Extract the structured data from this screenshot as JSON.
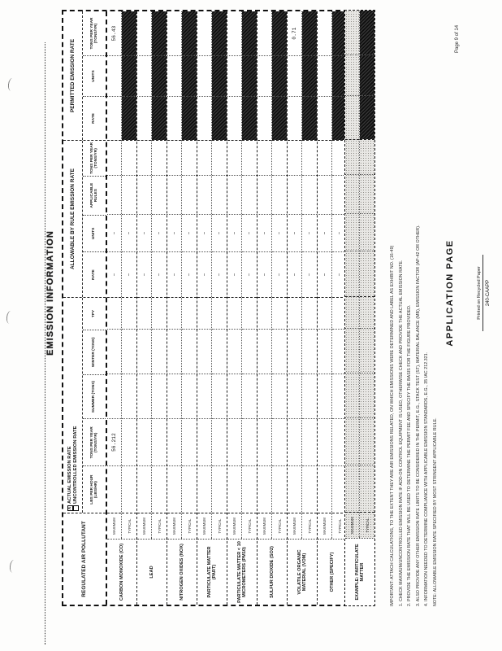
{
  "page": {
    "title": "EMISSION INFORMATION",
    "page_number": "Page 9 of 14",
    "footer": {
      "title": "APPLICATION PAGE",
      "recycled_note": "Printed on Recycled Paper",
      "form_number": "240-CAAPP"
    }
  },
  "table": {
    "pollutant_header": "REGULATED AIR POLLUTANT",
    "subrow_labels": [
      "MAXIMUM",
      "TYPICAL"
    ],
    "sections": {
      "actual": {
        "checkbox_checked_label": "ACTUAL EMISSION RATE",
        "checkbox_unchecked_label": "UNCONTROLLED EMISSION RATE",
        "check_glyph": "X",
        "columns": [
          "LBS PER HOUR (LBS/HR)",
          "TONS PER YEAR (TONS/YR)",
          "SUMMER (TONS)",
          "WINTER (TONS)",
          "TPY"
        ]
      },
      "allowable": {
        "title": "ALLOWABLE BY RULE EMISSION RATE",
        "columns": [
          "RATE",
          "UNITS",
          "APPLICABLE RULES",
          "TONS PER YEAR (TONS/YR)"
        ]
      },
      "permitted": {
        "title": "PERMITTED EMISSION RATE",
        "columns": [
          "RATE",
          "UNITS",
          "TONS PER YEAR (TONS/YR)"
        ]
      }
    },
    "rows": [
      {
        "name": "CARBON MONOXIDE (CO)",
        "sub": [
          {
            "label": "MAXIMUM",
            "actual": [
              "",
              "56.212",
              "",
              "",
              ""
            ],
            "allowable": [
              "-",
              "-",
              "",
              ""
            ],
            "permitted": [
              "",
              "",
              "56.43"
            ],
            "permitted_black": false
          },
          {
            "label": "TYPICAL",
            "actual": [
              "",
              "",
              "",
              "",
              ""
            ],
            "allowable": [
              "-",
              "-",
              "",
              ""
            ],
            "permitted": [
              "",
              "",
              ""
            ],
            "permitted_black": true
          }
        ]
      },
      {
        "name": "LEAD",
        "sub": [
          {
            "label": "MAXIMUM",
            "actual": [
              "",
              "",
              "",
              "",
              ""
            ],
            "allowable": [
              "-",
              "-",
              "",
              ""
            ],
            "permitted": [
              "",
              "",
              ""
            ],
            "permitted_black": false
          },
          {
            "label": "TYPICAL",
            "actual": [
              "",
              "",
              "",
              "",
              ""
            ],
            "allowable": [
              "-",
              "-",
              "",
              ""
            ],
            "permitted": [
              "",
              "",
              ""
            ],
            "permitted_black": true
          }
        ]
      },
      {
        "name": "NITROGEN OXIDES (NOX)",
        "sub": [
          {
            "label": "MAXIMUM",
            "actual": [
              "",
              "",
              "",
              "",
              ""
            ],
            "allowable": [
              "-",
              "-",
              "",
              ""
            ],
            "permitted": [
              "",
              "",
              ""
            ],
            "permitted_black": false
          },
          {
            "label": "TYPICAL",
            "actual": [
              "",
              "",
              "",
              "",
              ""
            ],
            "allowable": [
              "-",
              "-",
              "",
              ""
            ],
            "permitted": [
              "",
              "",
              ""
            ],
            "permitted_black": true
          }
        ]
      },
      {
        "name": "PARTICULATE MATTER (PART)",
        "sub": [
          {
            "label": "MAXIMUM",
            "actual": [
              "",
              "",
              "",
              "",
              ""
            ],
            "allowable": [
              "-",
              "-",
              "",
              ""
            ],
            "permitted": [
              "",
              "",
              ""
            ],
            "permitted_black": false
          },
          {
            "label": "TYPICAL",
            "actual": [
              "",
              "",
              "",
              "",
              ""
            ],
            "allowable": [
              "-",
              "-",
              "",
              ""
            ],
            "permitted": [
              "",
              "",
              ""
            ],
            "permitted_black": true
          }
        ]
      },
      {
        "name": "PARTICULATE MATTER < 10 MICROMETERS (PM10)",
        "sub": [
          {
            "label": "MAXIMUM",
            "actual": [
              "",
              "",
              "",
              "",
              ""
            ],
            "allowable": [
              "-",
              "-",
              "",
              ""
            ],
            "permitted": [
              "",
              "",
              ""
            ],
            "permitted_black": false
          },
          {
            "label": "TYPICAL",
            "actual": [
              "",
              "",
              "",
              "",
              ""
            ],
            "allowable": [
              "-",
              "-",
              "",
              ""
            ],
            "permitted": [
              "",
              "",
              ""
            ],
            "permitted_black": true
          }
        ]
      },
      {
        "name": "SULFUR DIOXIDE (SO2)",
        "sub": [
          {
            "label": "MAXIMUM",
            "actual": [
              "",
              "",
              "",
              "",
              ""
            ],
            "allowable": [
              "-",
              "-",
              "",
              ""
            ],
            "permitted": [
              "",
              "",
              ""
            ],
            "permitted_black": false
          },
          {
            "label": "TYPICAL",
            "actual": [
              "",
              "",
              "",
              "",
              ""
            ],
            "allowable": [
              "-",
              "-",
              "",
              ""
            ],
            "permitted": [
              "",
              "",
              ""
            ],
            "permitted_black": true
          }
        ]
      },
      {
        "name": "VOLATILE ORGANIC MATERIAL (VOM)",
        "sub": [
          {
            "label": "MAXIMUM",
            "actual": [
              "",
              "",
              "",
              "",
              ""
            ],
            "allowable": [
              "-",
              "-",
              "",
              ""
            ],
            "permitted": [
              "",
              "",
              "0.71"
            ],
            "permitted_black": false
          },
          {
            "label": "TYPICAL",
            "actual": [
              "",
              "",
              "",
              "",
              ""
            ],
            "allowable": [
              "-",
              "-",
              "",
              ""
            ],
            "permitted": [
              "",
              "",
              ""
            ],
            "permitted_black": true
          }
        ]
      },
      {
        "name": "OTHER (SPECIFY)",
        "sub": [
          {
            "label": "MAXIMUM",
            "actual": [
              "",
              "",
              "",
              "",
              ""
            ],
            "allowable": [
              "-",
              "-",
              "",
              ""
            ],
            "permitted": [
              "",
              "",
              ""
            ],
            "permitted_black": false
          },
          {
            "label": "TYPICAL",
            "actual": [
              "",
              "",
              "",
              "",
              ""
            ],
            "allowable": [
              "-",
              "-",
              "",
              ""
            ],
            "permitted": [
              "",
              "",
              ""
            ],
            "permitted_black": true
          }
        ]
      }
    ],
    "example_row": {
      "name": "EXAMPLE: PARTICULATE MATTER",
      "sub": [
        {
          "label": "MAXIMUM",
          "actual": [
            "",
            "",
            "",
            "",
            ""
          ],
          "allowable": [
            "",
            "",
            "",
            ""
          ],
          "permitted": [
            "",
            "",
            ""
          ],
          "permitted_black": false
        },
        {
          "label": "TYPICAL",
          "actual": [
            "",
            "",
            "",
            "",
            ""
          ],
          "allowable": [
            "",
            "",
            "",
            ""
          ],
          "permitted": [
            "",
            "",
            ""
          ],
          "permitted_black": true
        }
      ]
    }
  },
  "footnotes": [
    "IMPORTANT: ATTACH CALCULATIONS, TO THE EXTENT THEY ARE AIR EMISSIONS RELATED, ON WHICH EMISSIONS WERE DETERMINED AND LABEL AS EXHIBIT NO. (16-49)",
    "1. CHECK MAXIMUM/UNCONTROLLED EMISSION RATE IF ADD-ON CONTROL EQUIPMENT IS USED, OTHERWISE CHECK AND PROVIDE THE ACTUAL EMISSION RATE.",
    "2. PROVIDE THE EMISSION RATE THAT WILL BE USED TO DETERMINE THE PERMIT FEE AND SPECIFY THE BASIS FOR THE FIGURE PROVIDED.",
    "3. ALSO PROVIDE ANY OTHER EMISSION RATE LIMITS TO BE CONSIDERED IN THE PERMIT, E.G., STACK TEST (ST), MATERIAL BALANCE (MB), EMISSION FACTOR (AP-42 OR OTHER).",
    "4. INFORMATION NEEDED TO DETERMINE COMPLIANCE WITH APPLICABLE EMISSION STANDARDS, E.G., 35 IAC 212.321.",
    "NOTE: ALLOWABLE EMISSION RATE SPECIFIED BY MOST STRINGENT APPLICABLE RULE."
  ],
  "scan_marks": [
    "(",
    "(",
    "("
  ]
}
